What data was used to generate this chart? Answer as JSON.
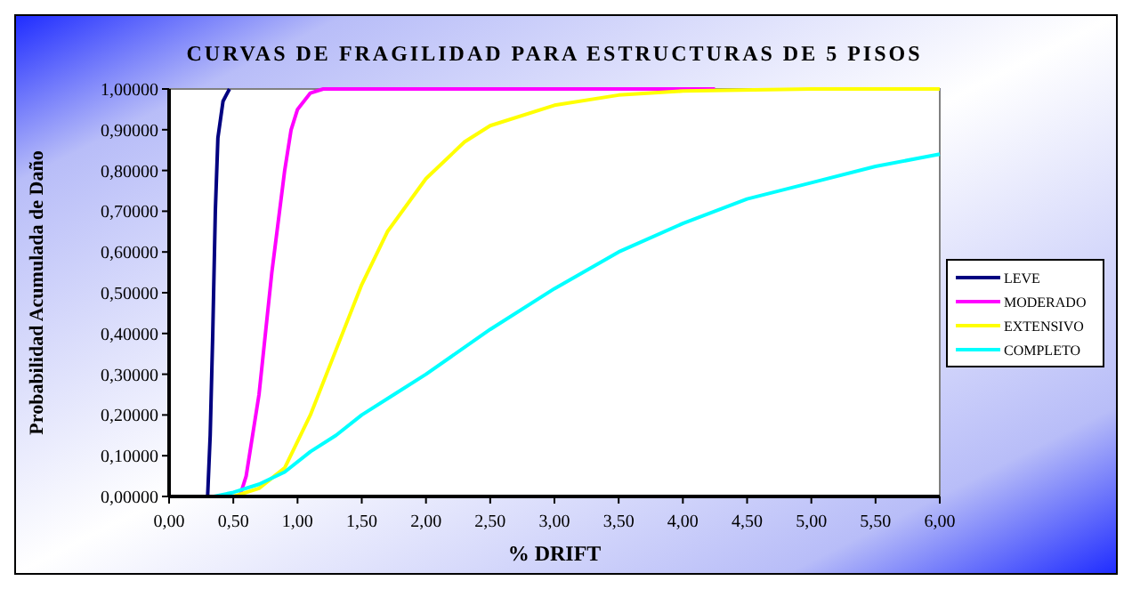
{
  "chart_data": {
    "type": "line",
    "title": "CURVAS DE FRAGILIDAD PARA ESTRUCTURAS DE 5 PISOS",
    "xlabel": "% DRIFT",
    "ylabel": "Probabilidad Acumulada de Daño",
    "xlim": [
      0,
      6
    ],
    "ylim": [
      0,
      1
    ],
    "xticks": [
      {
        "value": 0,
        "label": "0,00"
      },
      {
        "value": 0.5,
        "label": "0,50"
      },
      {
        "value": 1,
        "label": "1,00"
      },
      {
        "value": 1.5,
        "label": "1,50"
      },
      {
        "value": 2,
        "label": "2,00"
      },
      {
        "value": 2.5,
        "label": "2,50"
      },
      {
        "value": 3,
        "label": "3,00"
      },
      {
        "value": 3.5,
        "label": "3,50"
      },
      {
        "value": 4,
        "label": "4,00"
      },
      {
        "value": 4.5,
        "label": "4,50"
      },
      {
        "value": 5,
        "label": "5,00"
      },
      {
        "value": 5.5,
        "label": "5,50"
      },
      {
        "value": 6,
        "label": "6,00"
      }
    ],
    "yticks": [
      {
        "value": 0,
        "label": "0,00000"
      },
      {
        "value": 0.1,
        "label": "0,10000"
      },
      {
        "value": 0.2,
        "label": "0,20000"
      },
      {
        "value": 0.3,
        "label": "0,30000"
      },
      {
        "value": 0.4,
        "label": "0,40000"
      },
      {
        "value": 0.5,
        "label": "0,50000"
      },
      {
        "value": 0.6,
        "label": "0,60000"
      },
      {
        "value": 0.7,
        "label": "0,70000"
      },
      {
        "value": 0.8,
        "label": "0,80000"
      },
      {
        "value": 0.9,
        "label": "0,90000"
      },
      {
        "value": 1,
        "label": "1,00000"
      }
    ],
    "grid": false,
    "legend": "right",
    "line_style": "solid",
    "series": [
      {
        "name": "LEVE",
        "color": "#000080",
        "x": [
          0.3,
          0.32,
          0.34,
          0.36,
          0.38,
          0.42,
          0.47
        ],
        "values": [
          0,
          0.15,
          0.4,
          0.7,
          0.88,
          0.97,
          1
        ]
      },
      {
        "name": "MODERADO",
        "color": "#ff00ff",
        "x": [
          0.55,
          0.6,
          0.7,
          0.8,
          0.9,
          0.95,
          1,
          1.1,
          1.2,
          4.25
        ],
        "values": [
          0,
          0.05,
          0.25,
          0.55,
          0.8,
          0.9,
          0.95,
          0.99,
          1,
          1
        ]
      },
      {
        "name": "EXTENSIVO",
        "color": "#ffff00",
        "x": [
          0.5,
          0.7,
          0.9,
          1.1,
          1.3,
          1.5,
          1.7,
          2,
          2.3,
          2.5,
          3,
          3.5,
          4,
          5,
          6
        ],
        "values": [
          0,
          0.02,
          0.07,
          0.2,
          0.36,
          0.52,
          0.65,
          0.78,
          0.87,
          0.91,
          0.96,
          0.985,
          0.995,
          1,
          1
        ]
      },
      {
        "name": "COMPLETO",
        "color": "#00ffff",
        "x": [
          0.35,
          0.5,
          0.7,
          0.9,
          1.1,
          1.3,
          1.5,
          1.75,
          2,
          2.5,
          3,
          3.5,
          4,
          4.5,
          5,
          5.5,
          6
        ],
        "values": [
          0,
          0.01,
          0.03,
          0.06,
          0.11,
          0.15,
          0.2,
          0.25,
          0.3,
          0.41,
          0.51,
          0.6,
          0.67,
          0.73,
          0.77,
          0.81,
          0.84
        ]
      }
    ]
  }
}
